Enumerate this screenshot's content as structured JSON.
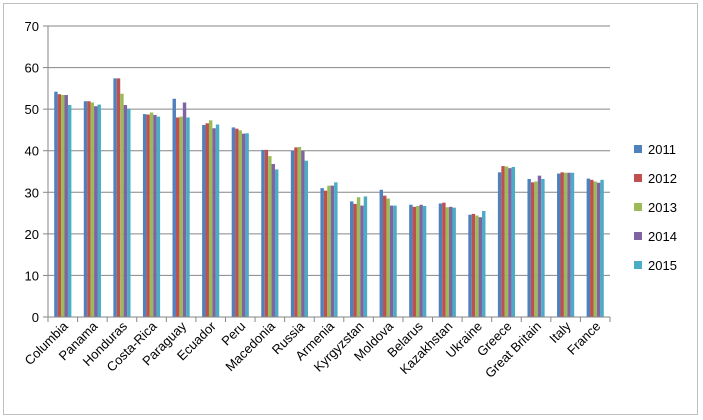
{
  "chart_data": {
    "type": "bar",
    "title": "",
    "xlabel": "",
    "ylabel": "",
    "ylim": [
      0,
      70
    ],
    "yticks": [
      "0",
      "10",
      "20",
      "30",
      "40",
      "50",
      "60",
      "70"
    ],
    "grid": "horizontal",
    "legend_position": "right",
    "categories": [
      "Columbia",
      "Panama",
      "Honduras",
      "Costa-Rica",
      "Paraguay",
      "Ecuador",
      "Peru",
      "Macedonia",
      "Russia",
      "Armenia",
      "Kyrgyzstan",
      "Moldova",
      "Belarus",
      "Kazakhstan",
      "Ukraine",
      "Greece",
      "Great Britain",
      "Italy",
      "France"
    ],
    "series": [
      {
        "name": "2011",
        "color": "#4f81bd",
        "values": [
          54.2,
          51.9,
          57.4,
          48.8,
          52.5,
          46.2,
          45.6,
          40.2,
          40.0,
          31.0,
          27.8,
          30.6,
          27.0,
          27.3,
          24.6,
          34.8,
          33.2,
          34.5,
          33.3
        ]
      },
      {
        "name": "2012",
        "color": "#c0504d",
        "values": [
          53.6,
          51.9,
          57.4,
          48.7,
          48.0,
          46.6,
          45.3,
          40.2,
          40.8,
          30.4,
          27.2,
          29.2,
          26.5,
          27.5,
          24.8,
          36.3,
          32.4,
          34.8,
          33.0
        ]
      },
      {
        "name": "2013",
        "color": "#9bbb59",
        "values": [
          53.4,
          51.6,
          53.7,
          49.2,
          48.2,
          47.3,
          44.9,
          38.7,
          40.9,
          31.6,
          28.8,
          28.5,
          26.7,
          26.4,
          24.4,
          36.2,
          32.6,
          34.7,
          32.6
        ]
      },
      {
        "name": "2014",
        "color": "#8064a2",
        "values": [
          53.4,
          50.7,
          51.0,
          48.6,
          51.6,
          45.4,
          44.1,
          36.8,
          40.0,
          31.6,
          26.8,
          26.8,
          27.0,
          26.5,
          24.0,
          35.8,
          34.0,
          34.7,
          32.3
        ]
      },
      {
        "name": "2015",
        "color": "#4bacc6",
        "values": [
          51.0,
          51.1,
          50.1,
          48.2,
          48.0,
          46.3,
          44.2,
          35.5,
          37.6,
          32.4,
          29.0,
          26.8,
          26.7,
          26.3,
          25.5,
          36.1,
          33.2,
          34.7,
          33.0
        ]
      }
    ]
  }
}
